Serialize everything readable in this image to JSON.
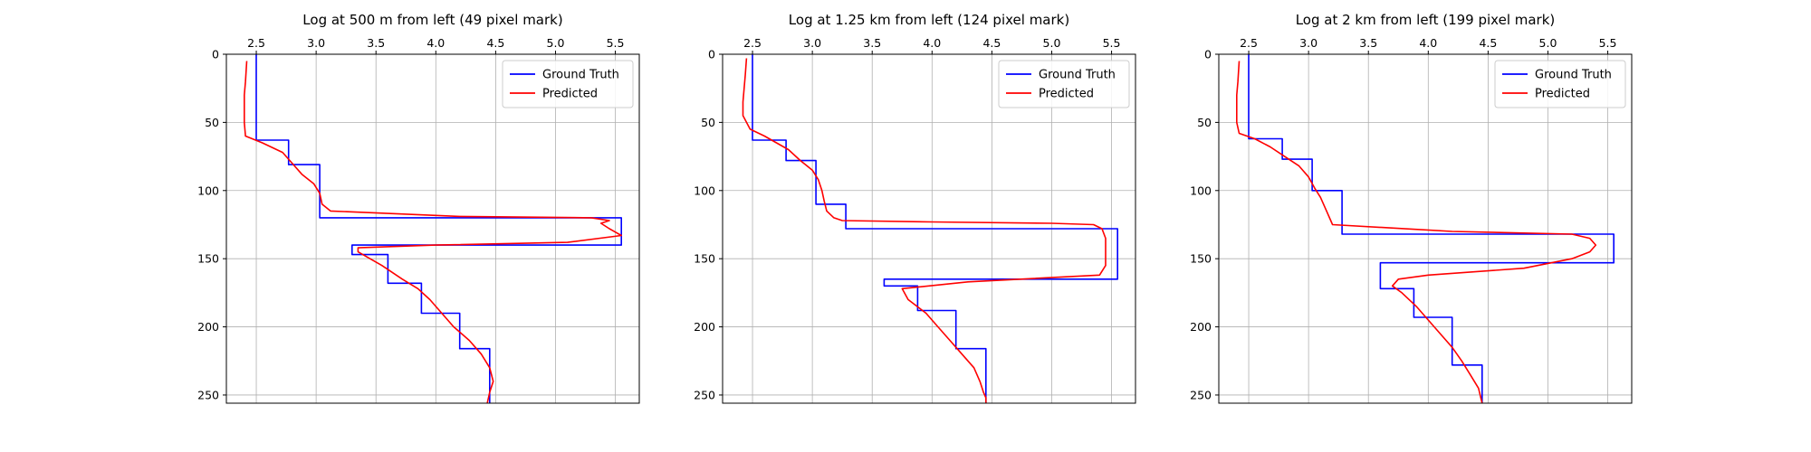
{
  "chart_data": [
    {
      "type": "line",
      "title": "Log at 500 m from left (49 pixel mark)",
      "xlabel": "",
      "ylabel": "",
      "xlim": [
        2.25,
        5.7
      ],
      "ylim": [
        256,
        0
      ],
      "xticks": [
        "2.5",
        "3.0",
        "3.5",
        "4.0",
        "4.5",
        "5.0",
        "5.5"
      ],
      "yticks": [
        "0",
        "50",
        "100",
        "150",
        "200",
        "250"
      ],
      "grid": true,
      "legend_position": "top-right",
      "series": [
        {
          "name": "Ground Truth",
          "color": "#0000ff",
          "x": [
            2.5,
            2.5,
            2.77,
            2.77,
            3.03,
            3.03,
            5.55,
            5.55,
            3.3,
            3.3,
            3.6,
            3.6,
            3.88,
            3.88,
            4.2,
            4.2,
            4.45,
            4.45
          ],
          "y": [
            0,
            63,
            63,
            81,
            81,
            120,
            120,
            140,
            140,
            147,
            147,
            168,
            168,
            190,
            190,
            216,
            216,
            256
          ]
        },
        {
          "name": "Predicted",
          "color": "#ff0000",
          "x": [
            2.42,
            2.41,
            2.4,
            2.4,
            2.4,
            2.41,
            2.55,
            2.72,
            2.8,
            2.88,
            2.98,
            3.03,
            3.05,
            3.12,
            4.2,
            5.3,
            5.45,
            5.38,
            5.45,
            5.55,
            5.1,
            4.0,
            3.35,
            3.35,
            3.55,
            3.72,
            3.85,
            3.95,
            4.05,
            4.15,
            4.28,
            4.38,
            4.45,
            4.48,
            4.45,
            4.43
          ],
          "y": [
            5,
            20,
            30,
            40,
            50,
            60,
            65,
            72,
            80,
            88,
            95,
            102,
            110,
            115,
            119,
            120,
            122,
            124,
            128,
            133,
            138,
            140,
            142,
            145,
            155,
            165,
            172,
            180,
            190,
            200,
            210,
            220,
            230,
            240,
            248,
            256
          ]
        }
      ]
    },
    {
      "type": "line",
      "title": "Log at 1.25 km from left (124 pixel mark)",
      "xlabel": "",
      "ylabel": "",
      "xlim": [
        2.25,
        5.7
      ],
      "ylim": [
        256,
        0
      ],
      "xticks": [
        "2.5",
        "3.0",
        "3.5",
        "4.0",
        "4.5",
        "5.0",
        "5.5"
      ],
      "yticks": [
        "0",
        "50",
        "100",
        "150",
        "200",
        "250"
      ],
      "grid": true,
      "legend_position": "top-right",
      "series": [
        {
          "name": "Ground Truth",
          "color": "#0000ff",
          "x": [
            2.5,
            2.5,
            2.78,
            2.78,
            3.03,
            3.03,
            3.28,
            3.28,
            5.55,
            5.55,
            3.6,
            3.6,
            3.88,
            3.88,
            4.2,
            4.2,
            4.45,
            4.45
          ],
          "y": [
            0,
            63,
            63,
            78,
            78,
            110,
            110,
            128,
            128,
            165,
            165,
            170,
            170,
            188,
            188,
            216,
            216,
            256
          ]
        },
        {
          "name": "Predicted",
          "color": "#ff0000",
          "x": [
            2.45,
            2.44,
            2.43,
            2.42,
            2.42,
            2.48,
            2.6,
            2.7,
            2.8,
            2.9,
            3.0,
            3.05,
            3.08,
            3.1,
            3.12,
            3.18,
            3.25,
            4.0,
            5.0,
            5.35,
            5.42,
            5.45,
            5.45,
            5.45,
            5.4,
            4.3,
            3.75,
            3.8,
            3.95,
            4.05,
            4.15,
            4.25,
            4.35,
            4.4,
            4.43,
            4.45,
            4.45
          ],
          "y": [
            3,
            15,
            25,
            35,
            45,
            55,
            60,
            65,
            70,
            78,
            85,
            92,
            100,
            108,
            115,
            120,
            122,
            123,
            124,
            125,
            128,
            135,
            145,
            155,
            162,
            167,
            172,
            180,
            190,
            200,
            210,
            220,
            230,
            240,
            248,
            252,
            256
          ]
        }
      ]
    },
    {
      "type": "line",
      "title": "Log at 2 km from left (199 pixel mark)",
      "xlabel": "",
      "ylabel": "",
      "xlim": [
        2.25,
        5.7
      ],
      "ylim": [
        256,
        0
      ],
      "xticks": [
        "2.5",
        "3.0",
        "3.5",
        "4.0",
        "4.5",
        "5.0",
        "5.5"
      ],
      "yticks": [
        "0",
        "50",
        "100",
        "150",
        "200",
        "250"
      ],
      "grid": true,
      "legend_position": "top-right",
      "series": [
        {
          "name": "Ground Truth",
          "color": "#0000ff",
          "x": [
            2.5,
            2.5,
            2.78,
            2.78,
            3.03,
            3.03,
            3.28,
            3.28,
            5.55,
            5.55,
            3.6,
            3.6,
            3.88,
            3.88,
            4.2,
            4.2,
            4.45,
            4.45
          ],
          "y": [
            0,
            62,
            62,
            77,
            77,
            100,
            100,
            132,
            132,
            153,
            153,
            172,
            172,
            193,
            193,
            228,
            228,
            256
          ]
        },
        {
          "name": "Predicted",
          "color": "#ff0000",
          "x": [
            2.42,
            2.41,
            2.4,
            2.4,
            2.4,
            2.42,
            2.55,
            2.68,
            2.8,
            2.92,
            3.0,
            3.05,
            3.1,
            3.15,
            3.2,
            4.2,
            5.2,
            5.35,
            5.4,
            5.35,
            5.2,
            4.8,
            4.0,
            3.75,
            3.7,
            3.78,
            3.9,
            4.0,
            4.1,
            4.2,
            4.28,
            4.35,
            4.42,
            4.45
          ],
          "y": [
            5,
            20,
            30,
            40,
            50,
            58,
            62,
            68,
            75,
            82,
            90,
            98,
            105,
            115,
            125,
            130,
            132,
            135,
            140,
            145,
            150,
            157,
            162,
            165,
            170,
            175,
            185,
            195,
            205,
            215,
            225,
            235,
            245,
            256
          ]
        }
      ]
    }
  ]
}
